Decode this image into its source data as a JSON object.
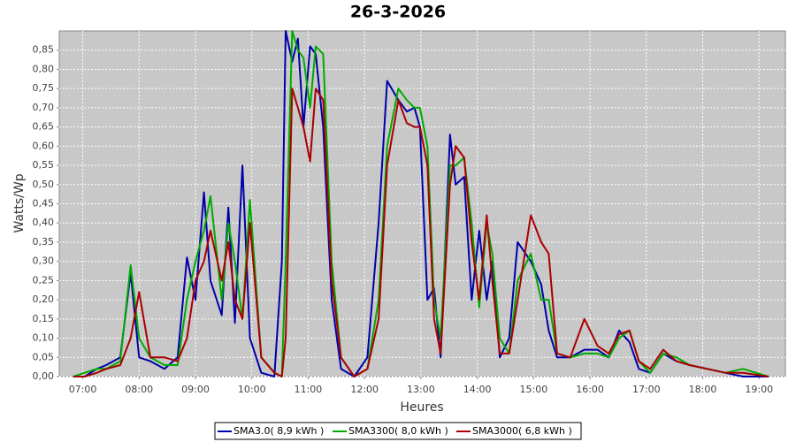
{
  "chart_data": {
    "type": "line",
    "title": "26-3-2026",
    "x_label": "Heures",
    "y_label": "Watts/Wp",
    "x": [
      410,
      422,
      435,
      445,
      460,
      471,
      480,
      492,
      507,
      521,
      531,
      540,
      549,
      556,
      568,
      575,
      582,
      590,
      598,
      610,
      624,
      632,
      636,
      643,
      649,
      655,
      662,
      668,
      676,
      685,
      695,
      709,
      723,
      735,
      744,
      756,
      765,
      773,
      779,
      787,
      794,
      801,
      811,
      817,
      826,
      834,
      842,
      850,
      856,
      864,
      874,
      883,
      897,
      908,
      916,
      925,
      939,
      954,
      968,
      980,
      991,
      1002,
      1012,
      1024,
      1038,
      1052,
      1066,
      1085,
      1104,
      1123,
      1150
    ],
    "series": [
      {
        "name": "SMA3.0( 8,9 kWh )",
        "color": "#0000aa",
        "values": [
          0,
          0,
          0.02,
          0.03,
          0.05,
          0.27,
          0.05,
          0.04,
          0.02,
          0.05,
          0.31,
          0.2,
          0.48,
          0.25,
          0.16,
          0.44,
          0.14,
          0.55,
          0.1,
          0.01,
          0,
          0.3,
          0.9,
          0.82,
          0.88,
          0.65,
          0.86,
          0.84,
          0.65,
          0.2,
          0.02,
          0,
          0.05,
          0.4,
          0.77,
          0.72,
          0.69,
          0.7,
          0.65,
          0.2,
          0.23,
          0.05,
          0.63,
          0.5,
          0.52,
          0.2,
          0.38,
          0.2,
          0.3,
          0.05,
          0.1,
          0.35,
          0.3,
          0.24,
          0.12,
          0.05,
          0.05,
          0.07,
          0.07,
          0.05,
          0.12,
          0.09,
          0.02,
          0.01,
          0.06,
          0.04,
          0.03,
          0.02,
          0.01,
          0,
          0
        ]
      },
      {
        "name": "SMA3300( 8,0 kWh )",
        "color": "#00aa00",
        "values": [
          0,
          0.01,
          0.02,
          0.02,
          0.04,
          0.29,
          0.1,
          0.05,
          0.03,
          0.03,
          0.2,
          0.3,
          0.38,
          0.47,
          0.2,
          0.4,
          0.3,
          0.15,
          0.46,
          0.05,
          0.01,
          0,
          0.3,
          0.9,
          0.85,
          0.83,
          0.7,
          0.86,
          0.84,
          0.3,
          0.05,
          0,
          0.02,
          0.2,
          0.6,
          0.75,
          0.72,
          0.7,
          0.7,
          0.6,
          0.2,
          0.1,
          0.55,
          0.55,
          0.57,
          0.4,
          0.18,
          0.4,
          0.32,
          0.1,
          0.06,
          0.25,
          0.32,
          0.2,
          0.2,
          0.06,
          0.05,
          0.06,
          0.06,
          0.05,
          0.1,
          0.12,
          0.04,
          0.01,
          0.06,
          0.05,
          0.03,
          0.02,
          0.01,
          0.02,
          0
        ]
      },
      {
        "name": "SMA3000( 6,8 kWh )",
        "color": "#aa0000",
        "values": [
          0,
          0,
          0.01,
          0.02,
          0.03,
          0.1,
          0.22,
          0.05,
          0.05,
          0.04,
          0.1,
          0.25,
          0.3,
          0.38,
          0.25,
          0.35,
          0.2,
          0.15,
          0.4,
          0.05,
          0.01,
          0,
          0.1,
          0.75,
          0.7,
          0.65,
          0.56,
          0.75,
          0.72,
          0.25,
          0.05,
          0,
          0.02,
          0.15,
          0.55,
          0.72,
          0.66,
          0.65,
          0.65,
          0.55,
          0.15,
          0.06,
          0.5,
          0.6,
          0.57,
          0.35,
          0.2,
          0.42,
          0.25,
          0.06,
          0.06,
          0.2,
          0.42,
          0.35,
          0.32,
          0.06,
          0.05,
          0.15,
          0.08,
          0.06,
          0.11,
          0.12,
          0.04,
          0.02,
          0.07,
          0.04,
          0.03,
          0.02,
          0.01,
          0.01,
          0
        ]
      }
    ],
    "xlim": [
      395,
      1168
    ],
    "xticks": [
      {
        "value": 420,
        "label": "07:00"
      },
      {
        "value": 480,
        "label": "08:00"
      },
      {
        "value": 540,
        "label": "09:00"
      },
      {
        "value": 600,
        "label": "10:00"
      },
      {
        "value": 660,
        "label": "11:00"
      },
      {
        "value": 720,
        "label": "12:00"
      },
      {
        "value": 780,
        "label": "13:00"
      },
      {
        "value": 840,
        "label": "14:00"
      },
      {
        "value": 900,
        "label": "15:00"
      },
      {
        "value": 960,
        "label": "16:00"
      },
      {
        "value": 1020,
        "label": "17:00"
      },
      {
        "value": 1080,
        "label": "18:00"
      },
      {
        "value": 1140,
        "label": "19:00"
      }
    ],
    "ylim": [
      0,
      0.9
    ],
    "yticks": [
      {
        "value": 0,
        "label": "0,00"
      },
      {
        "value": 0.05,
        "label": "0,05"
      },
      {
        "value": 0.1,
        "label": "0,10"
      },
      {
        "value": 0.15,
        "label": "0,15"
      },
      {
        "value": 0.2,
        "label": "0,20"
      },
      {
        "value": 0.25,
        "label": "0,25"
      },
      {
        "value": 0.3,
        "label": "0,30"
      },
      {
        "value": 0.35,
        "label": "0,35"
      },
      {
        "value": 0.4,
        "label": "0,40"
      },
      {
        "value": 0.45,
        "label": "0,45"
      },
      {
        "value": 0.5,
        "label": "0,50"
      },
      {
        "value": 0.55,
        "label": "0,55"
      },
      {
        "value": 0.6,
        "label": "0,60"
      },
      {
        "value": 0.65,
        "label": "0,65"
      },
      {
        "value": 0.7,
        "label": "0,70"
      },
      {
        "value": 0.75,
        "label": "0,75"
      },
      {
        "value": 0.8,
        "label": "0,80"
      },
      {
        "value": 0.85,
        "label": "0,85"
      }
    ],
    "grid": true
  }
}
